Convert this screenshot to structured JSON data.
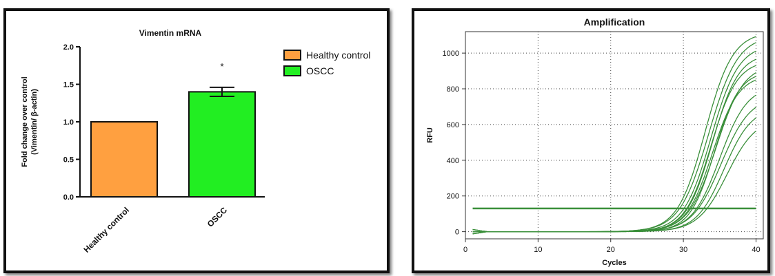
{
  "chart_data": [
    {
      "type": "bar",
      "title": "Vimentin mRNA",
      "ylabel": "Fold change over control",
      "ylabel2": "(Vimentin/ β-actin)",
      "xlabel": "",
      "categories": [
        "Healthy control",
        "OSCC"
      ],
      "values": [
        1.0,
        1.4
      ],
      "errors": [
        0,
        0.06
      ],
      "colors": [
        "#ffa040",
        "#22ee22"
      ],
      "ylim": [
        0,
        2.0
      ],
      "yticks": [
        "0.0",
        "0.5",
        "1.0",
        "1.5",
        "2.0"
      ],
      "significance": "*",
      "legend": {
        "position": "top-right",
        "entries": [
          {
            "label": "Healthy control",
            "color": "#ffa040"
          },
          {
            "label": "OSCC",
            "color": "#22ee22"
          }
        ]
      },
      "grid": false
    },
    {
      "type": "line",
      "title": "Amplification",
      "xlabel": "Cycles",
      "ylabel": "RFU",
      "xlim": [
        0,
        41
      ],
      "ylim": [
        -40,
        1120
      ],
      "xticks": [
        "0",
        "10",
        "20",
        "30",
        "40"
      ],
      "yticks": [
        "0",
        "200",
        "400",
        "600",
        "800",
        "1000"
      ],
      "grid": true,
      "line_color": "#3a8f3a",
      "threshold": 130,
      "curve_model": "sigmoid RFU = plateau / (1 + exp(-(cycle - midpoint) / slope))",
      "curves": [
        {
          "plateau": 1120,
          "midpoint": 33.0,
          "slope": 1.9
        },
        {
          "plateau": 1100,
          "midpoint": 33.5,
          "slope": 2.0
        },
        {
          "plateau": 1050,
          "midpoint": 33.8,
          "slope": 1.9
        },
        {
          "plateau": 1000,
          "midpoint": 34.0,
          "slope": 1.8
        },
        {
          "plateau": 960,
          "midpoint": 33.8,
          "slope": 1.8
        },
        {
          "plateau": 940,
          "midpoint": 34.5,
          "slope": 1.9
        },
        {
          "plateau": 900,
          "midpoint": 34.3,
          "slope": 1.7
        },
        {
          "plateau": 880,
          "midpoint": 34.0,
          "slope": 1.8
        },
        {
          "plateau": 820,
          "midpoint": 35.0,
          "slope": 1.9
        },
        {
          "plateau": 760,
          "midpoint": 35.2,
          "slope": 2.0
        },
        {
          "plateau": 700,
          "midpoint": 35.6,
          "slope": 1.9
        },
        {
          "plateau": 640,
          "midpoint": 36.0,
          "slope": 2.0
        }
      ]
    }
  ]
}
